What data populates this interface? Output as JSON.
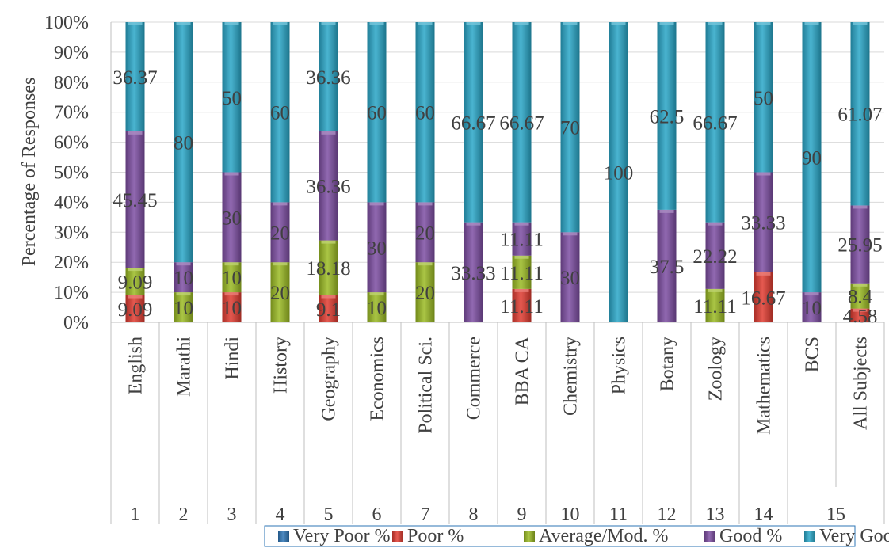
{
  "chart_data": {
    "type": "bar",
    "stacked": true,
    "ylabel": "Percentage of Responses",
    "ylim": [
      0,
      100
    ],
    "y_ticks": [
      "0%",
      "10%",
      "20%",
      "30%",
      "40%",
      "50%",
      "60%",
      "70%",
      "80%",
      "90%",
      "100%"
    ],
    "grid": true,
    "legend_position": "bottom",
    "categories": [
      "English",
      "Marathi",
      "Hindi",
      "History",
      "Geography",
      "Economics",
      "Political  Sci.",
      "Commerce",
      "BBA  CA",
      "Chemistry",
      "Physics",
      "Botany",
      "Zoology",
      "Mathematics",
      "BCS",
      "All Subjects"
    ],
    "category_numbers": [
      "1",
      "2",
      "3",
      "4",
      "5",
      "6",
      "7",
      "8",
      "9",
      "10",
      "11",
      "12",
      "13",
      "14",
      "15",
      ""
    ],
    "series": [
      {
        "name": "Very Poor %",
        "color": "#2e75b6",
        "values": [
          0,
          0,
          0,
          0,
          0,
          0,
          0,
          0,
          0,
          0,
          0,
          0,
          0,
          0,
          0,
          0
        ]
      },
      {
        "name": "Poor %",
        "color": "#e03c31",
        "values": [
          9.09,
          0,
          10,
          0,
          9.1,
          0,
          0,
          0,
          11.11,
          0,
          0,
          0,
          0,
          16.67,
          0,
          4.58
        ]
      },
      {
        "name": "Average/Mod. %",
        "color": "#9bbb24",
        "values": [
          9.09,
          10,
          10,
          20,
          18.18,
          10,
          20,
          0,
          11.11,
          0,
          0,
          0,
          11.11,
          0,
          0,
          8.4
        ]
      },
      {
        "name": "Good %",
        "color": "#7e4fa3",
        "values": [
          45.45,
          10,
          30,
          20,
          36.36,
          30,
          20,
          33.33,
          11.11,
          30,
          0,
          37.5,
          22.22,
          33.33,
          10,
          25.95
        ]
      },
      {
        "name": "Very Good %",
        "color": "#2aa7c8",
        "values": [
          36.37,
          80,
          50,
          60,
          36.36,
          60,
          60,
          66.67,
          66.67,
          70,
          100,
          62.5,
          66.67,
          50,
          90,
          61.07
        ]
      }
    ],
    "data_labels": [
      [
        {
          "s": 1,
          "t": "9.09"
        },
        {
          "s": 2,
          "t": "9.09"
        },
        {
          "s": 3,
          "t": "45.45"
        },
        {
          "s": 4,
          "t": "36.37"
        }
      ],
      [
        {
          "s": 2,
          "t": "10"
        },
        {
          "s": 3,
          "t": "10"
        },
        {
          "s": 4,
          "t": "80"
        }
      ],
      [
        {
          "s": 1,
          "t": "10"
        },
        {
          "s": 2,
          "t": "10"
        },
        {
          "s": 3,
          "t": "30"
        },
        {
          "s": 4,
          "t": "50"
        }
      ],
      [
        {
          "s": 2,
          "t": "20"
        },
        {
          "s": 3,
          "t": "20"
        },
        {
          "s": 4,
          "t": "60"
        }
      ],
      [
        {
          "s": 1,
          "t": "9.1"
        },
        {
          "s": 2,
          "t": "18.18"
        },
        {
          "s": 3,
          "t": "36.36"
        },
        {
          "s": 4,
          "t": "36.36"
        }
      ],
      [
        {
          "s": 2,
          "t": "10"
        },
        {
          "s": 3,
          "t": "30"
        },
        {
          "s": 4,
          "t": "60"
        }
      ],
      [
        {
          "s": 2,
          "t": "20"
        },
        {
          "s": 3,
          "t": "20"
        },
        {
          "s": 4,
          "t": "60"
        }
      ],
      [
        {
          "s": 3,
          "t": "33.33"
        },
        {
          "s": 4,
          "t": "66.67"
        }
      ],
      [
        {
          "s": 1,
          "t": "11.11"
        },
        {
          "s": 2,
          "t": "11.11"
        },
        {
          "s": 3,
          "t": "11.11"
        },
        {
          "s": 4,
          "t": "66.67"
        }
      ],
      [
        {
          "s": 3,
          "t": "30"
        },
        {
          "s": 4,
          "t": "70"
        }
      ],
      [
        {
          "s": 4,
          "t": "100"
        }
      ],
      [
        {
          "s": 3,
          "t": "37.5"
        },
        {
          "s": 4,
          "t": "62.5"
        }
      ],
      [
        {
          "s": 2,
          "t": "11.11"
        },
        {
          "s": 3,
          "t": "22.22"
        },
        {
          "s": 4,
          "t": "66.67"
        }
      ],
      [
        {
          "s": 1,
          "t": "16.67"
        },
        {
          "s": 3,
          "t": "33.33"
        },
        {
          "s": 4,
          "t": "50"
        }
      ],
      [
        {
          "s": 3,
          "t": "10"
        },
        {
          "s": 4,
          "t": "90"
        }
      ],
      [
        {
          "s": 1,
          "t": "4.58"
        },
        {
          "s": 2,
          "t": "8.4"
        },
        {
          "s": 3,
          "t": "25.95"
        },
        {
          "s": 4,
          "t": "61.07"
        }
      ]
    ]
  }
}
